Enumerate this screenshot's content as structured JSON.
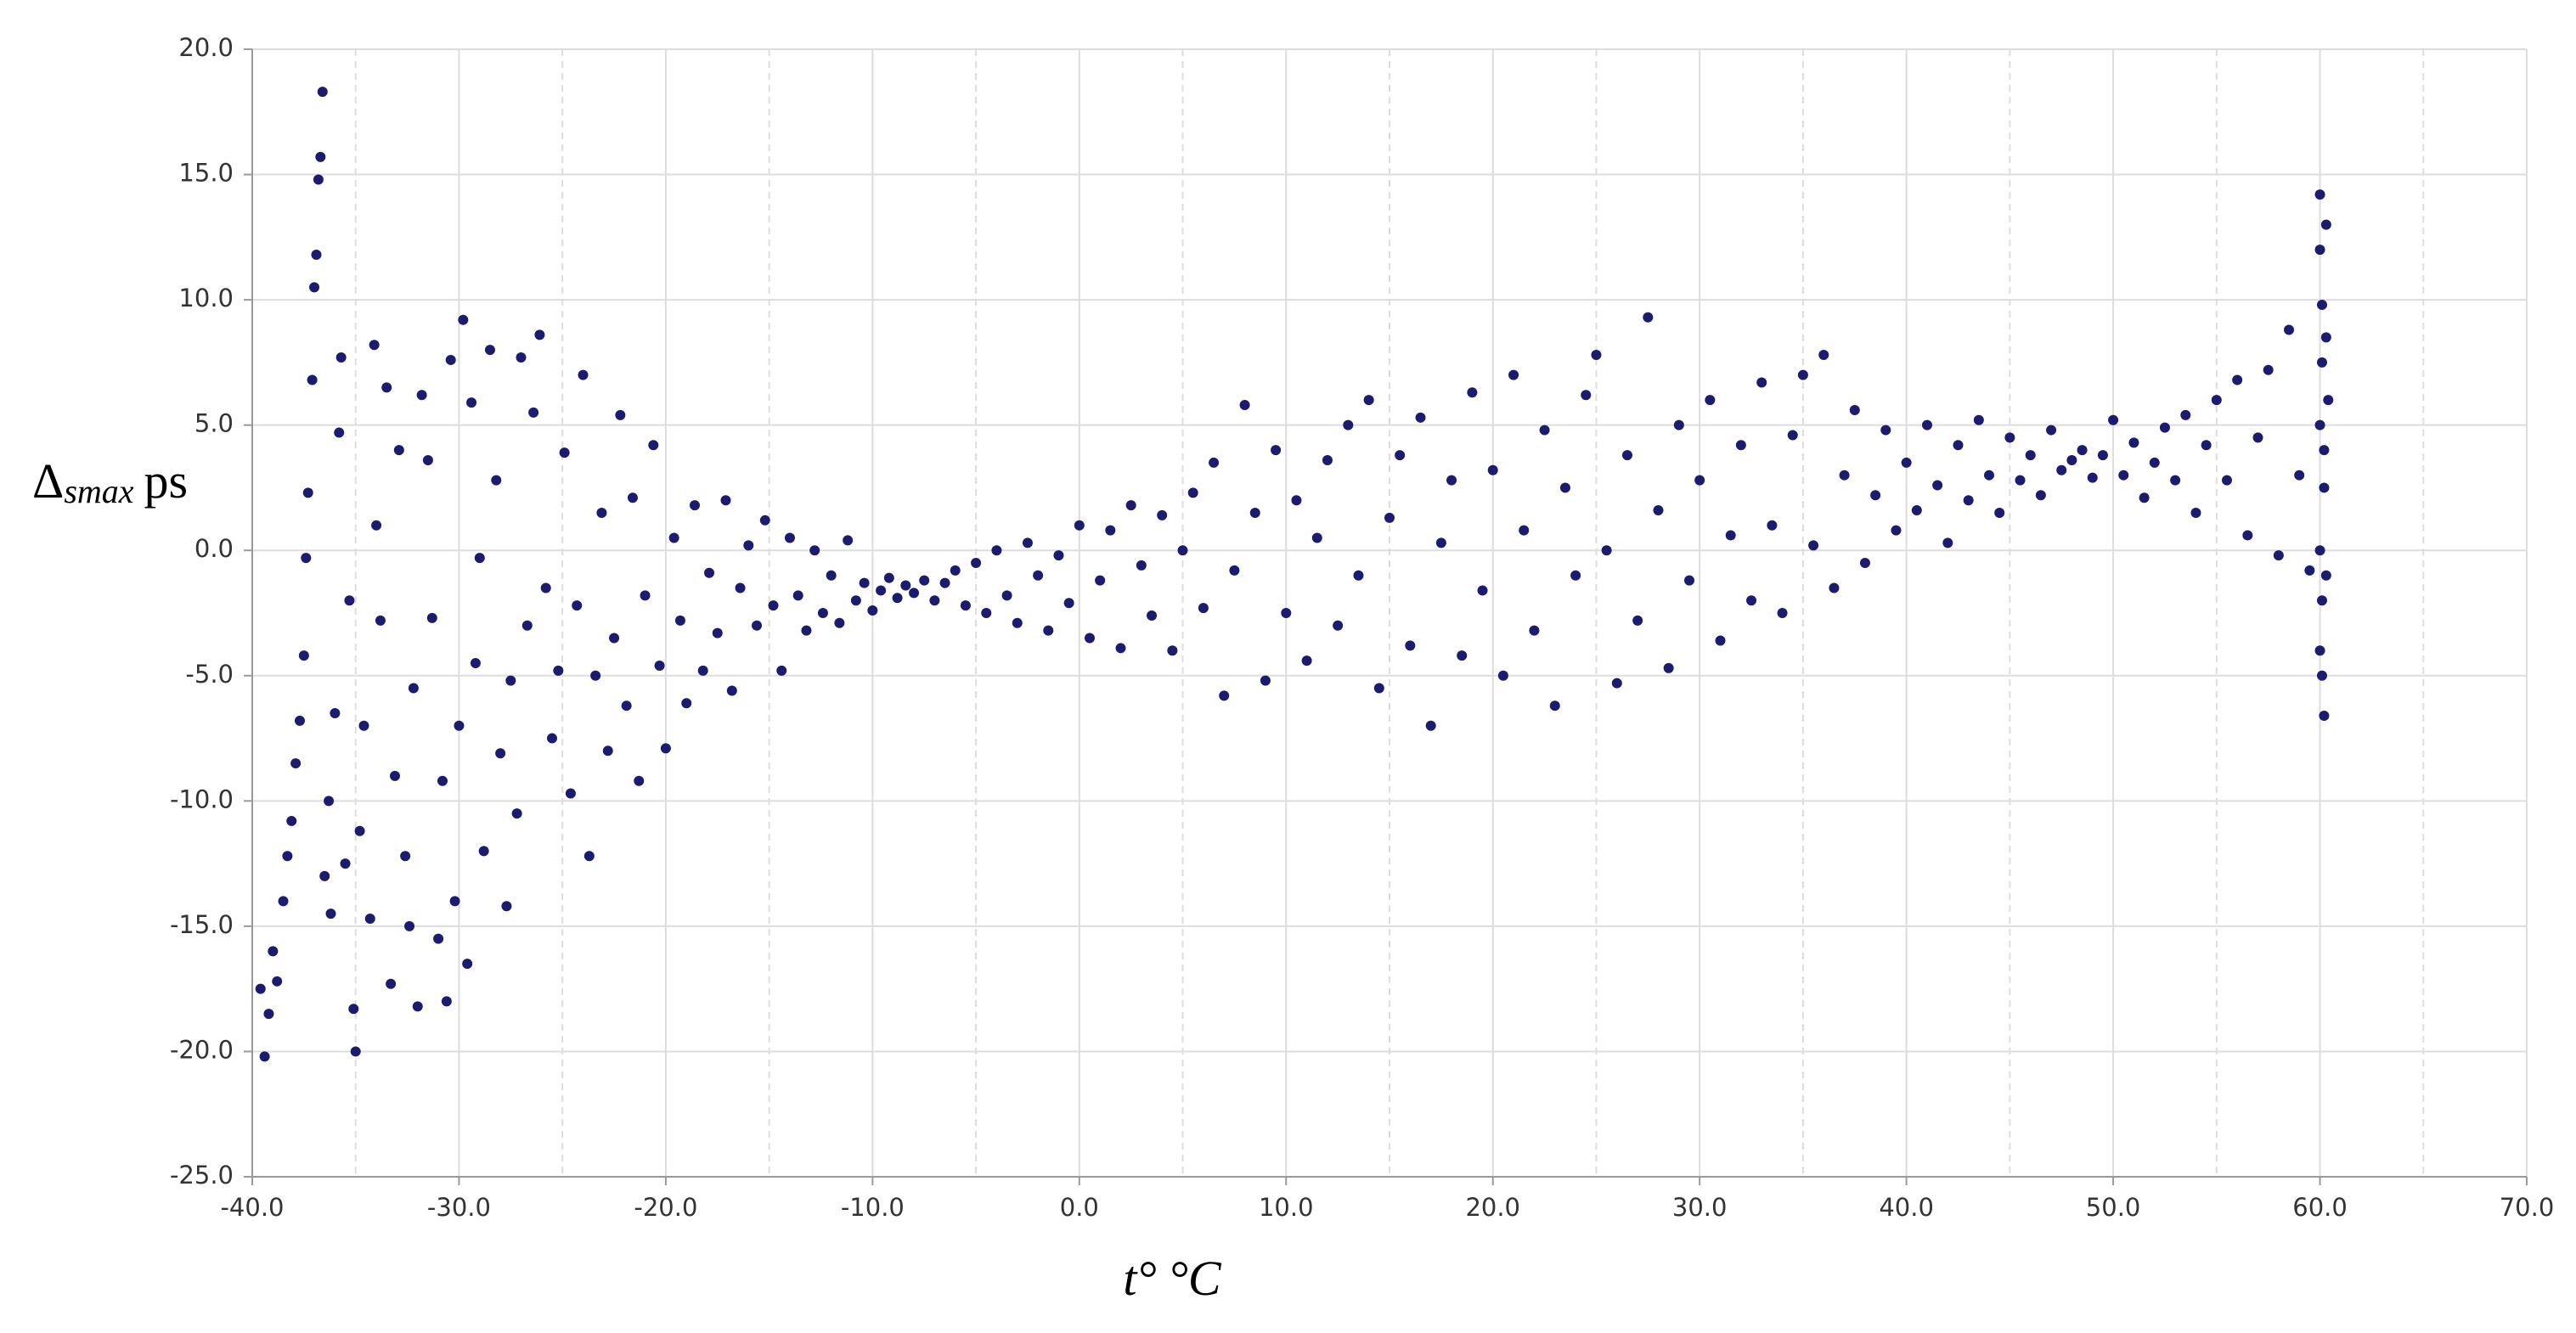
{
  "chart_data": {
    "type": "scatter",
    "ylabel": {
      "symbol": "Δ",
      "subscript": "smax",
      "unit": "ps"
    },
    "xlabel": {
      "symbol": "t°",
      "unit": "°C"
    },
    "color": "#1b1b6f",
    "grid": true,
    "xlim": [
      -40,
      70
    ],
    "ylim": [
      -25,
      20
    ],
    "xticks": [
      {
        "value": -40,
        "label": "-40.0"
      },
      {
        "value": -30,
        "label": "-30.0"
      },
      {
        "value": -20,
        "label": "-20.0"
      },
      {
        "value": -10,
        "label": "-10.0"
      },
      {
        "value": 0,
        "label": "0.0"
      },
      {
        "value": 10,
        "label": "10.0"
      },
      {
        "value": 20,
        "label": "20.0"
      },
      {
        "value": 30,
        "label": "30.0"
      },
      {
        "value": 40,
        "label": "40.0"
      },
      {
        "value": 50,
        "label": "50.0"
      },
      {
        "value": 60,
        "label": "60.0"
      },
      {
        "value": 70,
        "label": "70.0"
      }
    ],
    "xminorticks": [
      -35,
      -25,
      -15,
      -5,
      5,
      15,
      25,
      35,
      45,
      55,
      65
    ],
    "yticks": [
      {
        "value": -25,
        "label": "-25.0"
      },
      {
        "value": -20,
        "label": "-20.0"
      },
      {
        "value": -15,
        "label": "-15.0"
      },
      {
        "value": -10,
        "label": "-10.0"
      },
      {
        "value": -5,
        "label": "-5.0"
      },
      {
        "value": 0,
        "label": "0.0"
      },
      {
        "value": 5,
        "label": "5.0"
      },
      {
        "value": 10,
        "label": "10.0"
      },
      {
        "value": 15,
        "label": "15.0"
      },
      {
        "value": 20,
        "label": "20.0"
      }
    ],
    "x": [
      -39.6,
      -39.4,
      -39.2,
      -39,
      -38.8,
      -38.5,
      -38.3,
      -38.1,
      -37.9,
      -37.7,
      -37.5,
      -37.4,
      -37.3,
      -37.1,
      -37,
      -36.9,
      -36.8,
      -36.7,
      -36.6,
      -36.5,
      -36.3,
      -36.2,
      -36,
      -35.8,
      -35.7,
      -35.5,
      -35.3,
      -35.1,
      -35,
      -34.8,
      -34.6,
      -34.3,
      -34.1,
      -34,
      -33.8,
      -33.5,
      -33.3,
      -33.1,
      -32.9,
      -32.6,
      -32.4,
      -32.2,
      -32,
      -31.8,
      -31.5,
      -31.3,
      -31,
      -30.8,
      -30.6,
      -30.4,
      -30.2,
      -30,
      -29.8,
      -29.6,
      -29.4,
      -29.2,
      -29,
      -28.8,
      -28.5,
      -28.2,
      -28,
      -27.7,
      -27.5,
      -27.2,
      -27,
      -26.7,
      -26.4,
      -26.1,
      -25.8,
      -25.5,
      -25.2,
      -24.9,
      -24.6,
      -24.3,
      -24,
      -23.7,
      -23.4,
      -23.1,
      -22.8,
      -22.5,
      -22.2,
      -21.9,
      -21.6,
      -21.3,
      -21,
      -20.6,
      -20.3,
      -20,
      -19.6,
      -19.3,
      -19,
      -18.6,
      -18.2,
      -17.9,
      -17.5,
      -17.1,
      -16.8,
      -16.4,
      -16,
      -15.6,
      -15.2,
      -14.8,
      -14.4,
      -14,
      -13.6,
      -13.2,
      -12.8,
      -12.4,
      -12,
      -11.6,
      -11.2,
      -10.8,
      -10.4,
      -10,
      -9.6,
      -9.2,
      -8.8,
      -8.4,
      -8,
      -7.5,
      -7,
      -6.5,
      -6,
      -5.5,
      -5,
      -4.5,
      -4,
      -3.5,
      -3,
      -2.5,
      -2,
      -1.5,
      -1,
      -0.5,
      0,
      0.5,
      1,
      1.5,
      2,
      2.5,
      3,
      3.5,
      4,
      4.5,
      5,
      5.5,
      6,
      6.5,
      7,
      7.5,
      8,
      8.5,
      9,
      9.5,
      10,
      10.5,
      11,
      11.5,
      12,
      12.5,
      13,
      13.5,
      14,
      14.5,
      15,
      15.5,
      16,
      16.5,
      17,
      17.5,
      18,
      18.5,
      19,
      19.5,
      20,
      20.5,
      21,
      21.5,
      22,
      22.5,
      23,
      23.5,
      24,
      24.5,
      25,
      25.5,
      26,
      26.5,
      27,
      27.5,
      28,
      28.5,
      29,
      29.5,
      30,
      30.5,
      31,
      31.5,
      32,
      32.5,
      33,
      33.5,
      34,
      34.5,
      35,
      35.5,
      36,
      36.5,
      37,
      37.5,
      38,
      38.5,
      39,
      39.5,
      40,
      40.5,
      41,
      41.5,
      42,
      42.5,
      43,
      43.5,
      44,
      44.5,
      45,
      45.5,
      46,
      46.5,
      47,
      47.5,
      48,
      48.5,
      49,
      49.5,
      50,
      50.5,
      51,
      51.5,
      52,
      52.5,
      53,
      53.5,
      54,
      54.5,
      55,
      55.5,
      56,
      56.5,
      57,
      57.5,
      58,
      58.5,
      59,
      59.5,
      60,
      60,
      60.1,
      60.1,
      60,
      60.2,
      60,
      60.1,
      60,
      60.2,
      60.3,
      60.3,
      60.4,
      60.3,
      60.2,
      60.1
    ],
    "values": [
      -17.5,
      -20.2,
      -18.5,
      -16,
      -17.2,
      -14,
      -12.2,
      -10.8,
      -8.5,
      -6.8,
      -4.2,
      -0.3,
      2.3,
      6.8,
      10.5,
      11.8,
      14.8,
      15.7,
      18.3,
      -13,
      -10,
      -14.5,
      -6.5,
      4.7,
      7.7,
      -12.5,
      -2,
      -18.3,
      -20,
      -11.2,
      -7,
      -14.7,
      8.2,
      1,
      -2.8,
      6.5,
      -17.3,
      -9,
      4,
      -12.2,
      -15,
      -5.5,
      -18.2,
      6.2,
      3.6,
      -2.7,
      -15.5,
      -9.2,
      -18,
      7.6,
      -14,
      -7,
      9.2,
      -16.5,
      5.9,
      -4.5,
      -0.3,
      -12,
      8,
      2.8,
      -8.1,
      -14.2,
      -5.2,
      -10.5,
      7.7,
      -3,
      5.5,
      8.6,
      -1.5,
      -7.5,
      -4.8,
      3.9,
      -9.7,
      -2.2,
      7,
      -12.2,
      -5,
      1.5,
      -8,
      -3.5,
      5.4,
      -6.2,
      2.1,
      -9.2,
      -1.8,
      4.2,
      -4.6,
      -7.9,
      0.5,
      -2.8,
      -6.1,
      1.8,
      -4.8,
      -0.9,
      -3.3,
      2,
      -5.6,
      -1.5,
      0.2,
      -3,
      1.2,
      -2.2,
      -4.8,
      0.5,
      -1.8,
      -3.2,
      0,
      -2.5,
      -1,
      -2.9,
      0.4,
      -2,
      -1.3,
      -2.4,
      -1.6,
      -1.1,
      -1.9,
      -1.4,
      -1.7,
      -1.2,
      -2,
      -1.3,
      -0.8,
      -2.2,
      -0.5,
      -2.5,
      0,
      -1.8,
      -2.9,
      0.3,
      -1,
      -3.2,
      -0.2,
      -2.1,
      1,
      -3.5,
      -1.2,
      0.8,
      -3.9,
      1.8,
      -0.6,
      -2.6,
      1.4,
      -4,
      0,
      2.3,
      -2.3,
      3.5,
      -5.8,
      -0.8,
      5.8,
      1.5,
      -5.2,
      4,
      -2.5,
      2,
      -4.4,
      0.5,
      3.6,
      -3,
      5,
      -1,
      6,
      -5.5,
      1.3,
      3.8,
      -3.8,
      5.3,
      -7,
      0.3,
      2.8,
      -4.2,
      6.3,
      -1.6,
      3.2,
      -5,
      7,
      0.8,
      -3.2,
      4.8,
      -6.2,
      2.5,
      -1,
      6.2,
      7.8,
      0,
      -5.3,
      3.8,
      -2.8,
      9.3,
      1.6,
      -4.7,
      5,
      -1.2,
      2.8,
      6,
      -3.6,
      0.6,
      4.2,
      -2,
      6.7,
      1,
      -2.5,
      4.6,
      7,
      0.2,
      7.8,
      -1.5,
      3,
      5.6,
      -0.5,
      2.2,
      4.8,
      0.8,
      3.5,
      1.6,
      5,
      2.6,
      0.3,
      4.2,
      2,
      5.2,
      3,
      1.5,
      4.5,
      2.8,
      3.8,
      2.2,
      4.8,
      3.2,
      3.6,
      4,
      2.9,
      3.8,
      5.2,
      3,
      4.3,
      2.1,
      3.5,
      4.9,
      2.8,
      5.4,
      1.5,
      4.2,
      6,
      2.8,
      6.8,
      0.6,
      4.5,
      7.2,
      -0.2,
      8.8,
      3,
      -0.8,
      14.2,
      12,
      9.8,
      7.5,
      5,
      2.5,
      0,
      -2,
      -4,
      -6.6,
      13,
      8.5,
      6,
      -1,
      4,
      -5
    ]
  }
}
